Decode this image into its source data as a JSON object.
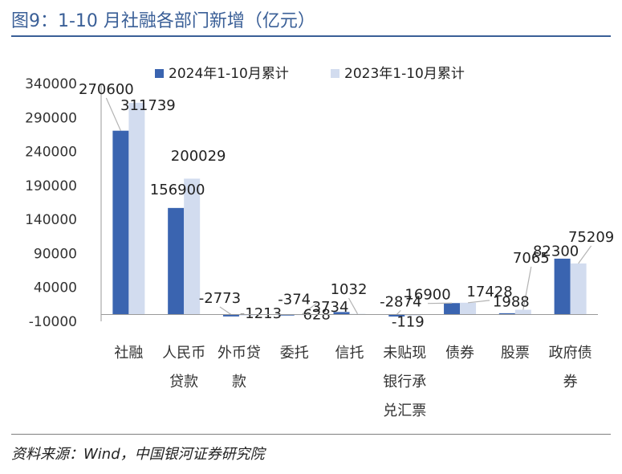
{
  "figure": {
    "title": "图9：1-10 月社融各部门新增（亿元）",
    "source": "资料来源：Wind，中国银河证券研究院"
  },
  "colors": {
    "series_2024": "#3a64b0",
    "series_2023": "#d2dcef",
    "axis": "#9a9a9a",
    "leader": "#b3b3b3",
    "title": "#3a5f97"
  },
  "chart_data": {
    "type": "bar",
    "title": "1-10 月社融各部门新增（亿元）",
    "categories": [
      "社融",
      "人民币贷款",
      "外币贷款",
      "委托",
      "信托",
      "未贴现银行承兑汇票",
      "债券",
      "股票",
      "政府债券"
    ],
    "category_labels": [
      [
        "社融"
      ],
      [
        "人民币",
        "贷款"
      ],
      [
        "外币贷",
        "款"
      ],
      [
        "委托"
      ],
      [
        "信托"
      ],
      [
        "未贴现",
        "银行承",
        "兑汇票"
      ],
      [
        "债券"
      ],
      [
        "股票"
      ],
      [
        "政府债",
        "券"
      ]
    ],
    "series": [
      {
        "name": "2024年1-10月累计",
        "values": [
          270600,
          156900,
          -2773,
          -374,
          3734,
          -2874,
          16900,
          1988,
          82300
        ]
      },
      {
        "name": "2023年1-10月累计",
        "values": [
          311739,
          200029,
          -1213,
          628,
          1032,
          -119,
          17428,
          7065,
          75209
        ]
      }
    ],
    "ylim": [
      -10000,
      340000
    ],
    "yticks": [
      -10000,
      40000,
      90000,
      140000,
      190000,
      240000,
      290000,
      340000
    ],
    "legend": "top",
    "grid": false
  }
}
